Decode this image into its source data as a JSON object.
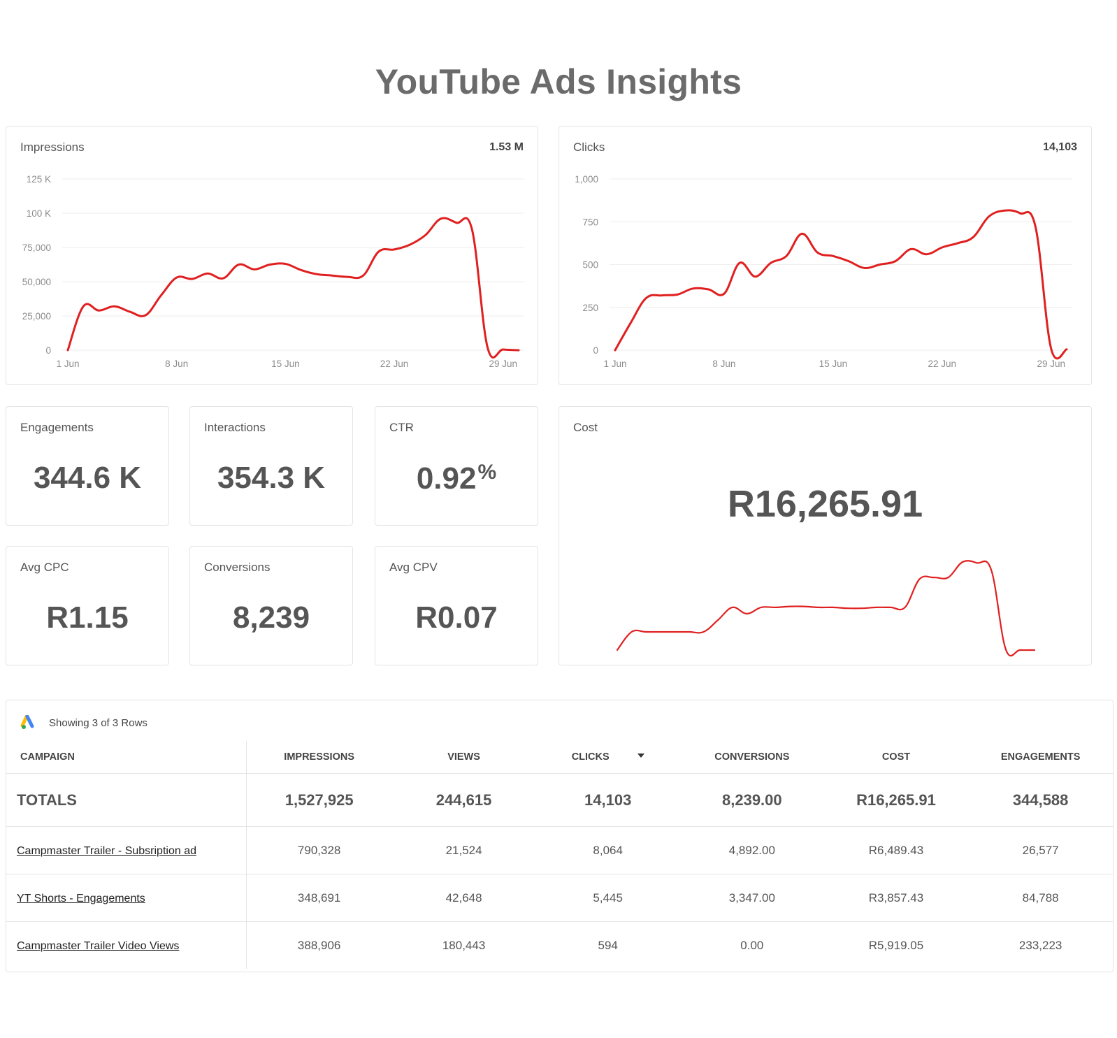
{
  "page_title": "YouTube Ads Insights",
  "colors": {
    "line": "#e02020",
    "text": "#555555",
    "border": "#e4e4e4"
  },
  "charts": {
    "impressions": {
      "label": "Impressions",
      "total": "1.53 M",
      "y_ticks": [
        "0",
        "25,000",
        "50,000",
        "75,000",
        "100 K",
        "125 K"
      ]
    },
    "clicks": {
      "label": "Clicks",
      "total": "14,103",
      "y_ticks": [
        "0",
        "250",
        "500",
        "750",
        "1,000"
      ]
    }
  },
  "chart_data": [
    {
      "type": "line",
      "title": "Impressions",
      "x": [
        "1 Jun",
        "2 Jun",
        "3 Jun",
        "4 Jun",
        "5 Jun",
        "6 Jun",
        "7 Jun",
        "8 Jun",
        "9 Jun",
        "10 Jun",
        "11 Jun",
        "12 Jun",
        "13 Jun",
        "14 Jun",
        "15 Jun",
        "16 Jun",
        "17 Jun",
        "18 Jun",
        "19 Jun",
        "20 Jun",
        "21 Jun",
        "22 Jun",
        "23 Jun",
        "24 Jun",
        "25 Jun",
        "26 Jun",
        "27 Jun",
        "28 Jun",
        "29 Jun",
        "30 Jun"
      ],
      "x_tick_labels": [
        "1 Jun",
        "8 Jun",
        "15 Jun",
        "22 Jun",
        "29 Jun"
      ],
      "series": [
        {
          "values": [
            0,
            32000,
            29000,
            32000,
            28000,
            25500,
            40000,
            53000,
            52000,
            56000,
            52500,
            62500,
            59000,
            62500,
            63000,
            58500,
            55500,
            54500,
            53500,
            54500,
            72000,
            73500,
            77000,
            84000,
            96000,
            93000,
            88000,
            2000,
            500,
            0
          ]
        }
      ],
      "ylim": [
        0,
        125000
      ],
      "grid": true
    },
    {
      "type": "line",
      "title": "Clicks",
      "x": [
        "1 Jun",
        "2 Jun",
        "3 Jun",
        "4 Jun",
        "5 Jun",
        "6 Jun",
        "7 Jun",
        "8 Jun",
        "9 Jun",
        "10 Jun",
        "11 Jun",
        "12 Jun",
        "13 Jun",
        "14 Jun",
        "15 Jun",
        "16 Jun",
        "17 Jun",
        "18 Jun",
        "19 Jun",
        "20 Jun",
        "21 Jun",
        "22 Jun",
        "23 Jun",
        "24 Jun",
        "25 Jun",
        "26 Jun",
        "27 Jun",
        "28 Jun",
        "29 Jun",
        "30 Jun"
      ],
      "x_tick_labels": [
        "1 Jun",
        "8 Jun",
        "15 Jun",
        "22 Jun",
        "29 Jun"
      ],
      "series": [
        {
          "values": [
            0,
            160,
            305,
            320,
            325,
            360,
            355,
            330,
            510,
            430,
            510,
            550,
            680,
            570,
            550,
            520,
            480,
            500,
            520,
            590,
            560,
            600,
            625,
            660,
            780,
            815,
            800,
            720,
            10,
            5
          ]
        }
      ],
      "ylim": [
        0,
        1000
      ],
      "grid": true
    },
    {
      "type": "line",
      "title": "Cost",
      "x": [
        "1 Jun",
        "2 Jun",
        "3 Jun",
        "4 Jun",
        "5 Jun",
        "6 Jun",
        "7 Jun",
        "8 Jun",
        "9 Jun",
        "10 Jun",
        "11 Jun",
        "12 Jun",
        "13 Jun",
        "14 Jun",
        "15 Jun",
        "16 Jun",
        "17 Jun",
        "18 Jun",
        "19 Jun",
        "20 Jun",
        "21 Jun",
        "22 Jun",
        "23 Jun",
        "24 Jun",
        "25 Jun",
        "26 Jun",
        "27 Jun",
        "28 Jun",
        "29 Jun",
        "30 Jun"
      ],
      "series": [
        {
          "values": [
            0,
            20,
            20,
            20,
            20,
            20,
            20,
            33,
            47,
            40,
            47,
            47,
            48,
            48,
            47,
            47,
            46,
            46,
            47,
            47,
            47,
            78,
            80,
            80,
            97,
            96,
            88,
            1,
            0,
            0
          ]
        }
      ],
      "grid": false
    }
  ],
  "stats": {
    "engagements": {
      "label": "Engagements",
      "value": "344.6 K"
    },
    "interactions": {
      "label": "Interactions",
      "value": "354.3 K"
    },
    "ctr": {
      "label": "CTR",
      "value": "0.92",
      "suffix": "%"
    },
    "avg_cpc": {
      "label": "Avg CPC",
      "value": "R1.15"
    },
    "conversions": {
      "label": "Conversions",
      "value": "8,239"
    },
    "avg_cpv": {
      "label": "Avg CPV",
      "value": "R0.07"
    }
  },
  "cost": {
    "label": "Cost",
    "value": "R16,265.91"
  },
  "table": {
    "info": "Showing 3 of 3 Rows",
    "columns": [
      "CAMPAIGN",
      "IMPRESSIONS",
      "VIEWS",
      "CLICKS",
      "CONVERSIONS",
      "COST",
      "ENGAGEMENTS"
    ],
    "totals": [
      "TOTALS",
      "1,527,925",
      "244,615",
      "14,103",
      "8,239.00",
      "R16,265.91",
      "344,588"
    ],
    "rows": [
      [
        "Campmaster Trailer - Subsription ad",
        "790,328",
        "21,524",
        "8,064",
        "4,892.00",
        "R6,489.43",
        "26,577"
      ],
      [
        "YT Shorts - Engagements",
        "348,691",
        "42,648",
        "5,445",
        "3,347.00",
        "R3,857.43",
        "84,788"
      ],
      [
        "Campmaster Trailer Video Views",
        "388,906",
        "180,443",
        "594",
        "0.00",
        "R5,919.05",
        "233,223"
      ]
    ]
  }
}
